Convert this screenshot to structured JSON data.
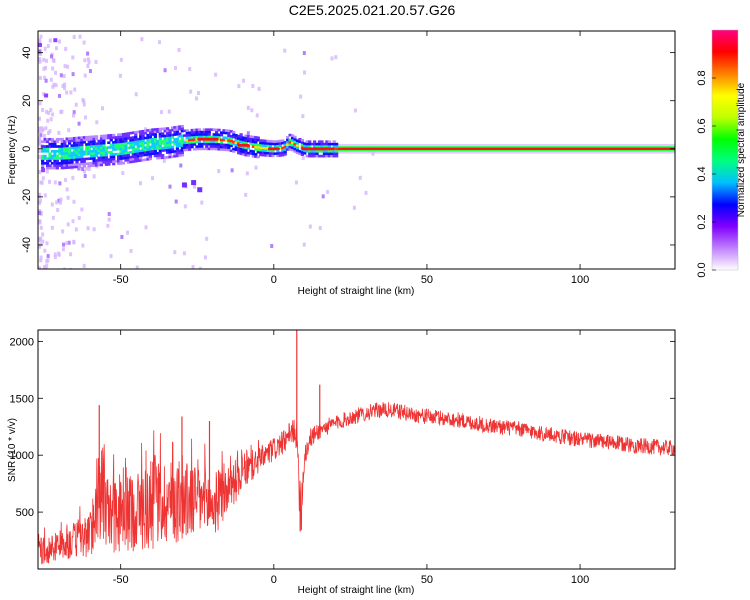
{
  "figure_title": "C2E5.2025.021.20.57.G26",
  "chart_data": [
    {
      "type": "heatmap",
      "title": "",
      "xlabel": "Height of straight line (km)",
      "ylabel": "Frequency (Hz)",
      "xlim": [
        -77,
        131
      ],
      "ylim": [
        -50,
        49
      ],
      "xticks": [
        -50,
        0,
        50,
        100
      ],
      "yticks": [
        -40,
        -20,
        0,
        20,
        40
      ],
      "xtick_labels": [
        "-50",
        "0",
        "50",
        "100"
      ],
      "ytick_labels": [
        "-40",
        "-20",
        "0",
        "20",
        "40"
      ],
      "colorbar": {
        "label": "Normalized spectral amplitude",
        "range": [
          0,
          1
        ],
        "ticks": [
          0.0,
          0.2,
          0.4,
          0.6,
          0.8
        ],
        "tick_labels": [
          "0.0",
          "0.2",
          "0.4",
          "0.6",
          "0.8"
        ],
        "colormap": [
          "#ffffff",
          "#c080ff",
          "#8000ff",
          "#0000ff",
          "#00c0ff",
          "#00ff80",
          "#00ff00",
          "#c0ff00",
          "#ffff00",
          "#ff8000",
          "#ff0000",
          "#ff0080"
        ]
      },
      "ridge": {
        "x": [
          -75,
          -70,
          -65,
          -60,
          -55,
          -50,
          -45,
          -40,
          -35,
          -30,
          -25,
          -20,
          -15,
          -10,
          -5,
          0,
          3,
          5,
          7,
          10,
          15,
          20,
          30,
          131
        ],
        "y": [
          -2,
          -2,
          -1.5,
          -1,
          -0.5,
          0,
          1,
          2,
          2.5,
          3.5,
          4,
          4,
          3.5,
          1.5,
          0.5,
          0,
          0.5,
          3,
          1.5,
          0,
          0,
          0,
          0,
          0
        ]
      }
    },
    {
      "type": "line",
      "title": "",
      "xlabel": "Height of straight line (km)",
      "ylabel": "SNR (10 * v/v)",
      "xlim": [
        -77,
        131
      ],
      "ylim": [
        0,
        2100
      ],
      "xticks": [
        -50,
        0,
        50,
        100
      ],
      "yticks": [
        500,
        1000,
        1500,
        2000
      ],
      "xtick_labels": [
        "-50",
        "0",
        "50",
        "100"
      ],
      "ytick_labels": [
        "500",
        "1000",
        "1500",
        "2000"
      ],
      "grid": false,
      "color": "#ee3333",
      "envelope": {
        "x": [
          -77,
          -70,
          -60,
          -58,
          -55,
          -50,
          -45,
          -40,
          -35,
          -30,
          -25,
          -20,
          -15,
          -10,
          -5,
          0,
          5,
          7,
          8,
          9,
          10,
          12,
          15,
          20,
          25,
          30,
          35,
          40,
          45,
          50,
          60,
          70,
          80,
          90,
          100,
          110,
          120,
          131
        ],
        "mean": [
          150,
          200,
          300,
          550,
          500,
          450,
          520,
          550,
          600,
          580,
          620,
          550,
          700,
          850,
          950,
          1050,
          1150,
          1250,
          900,
          550,
          1000,
          1150,
          1220,
          1280,
          1330,
          1370,
          1400,
          1390,
          1360,
          1340,
          1310,
          1260,
          1230,
          1180,
          1140,
          1110,
          1080,
          1060
        ],
        "spread": [
          120,
          130,
          200,
          350,
          350,
          320,
          360,
          400,
          380,
          360,
          350,
          300,
          220,
          160,
          120,
          110,
          100,
          120,
          300,
          250,
          130,
          90,
          80,
          70,
          70,
          70,
          70,
          70,
          70,
          70,
          70,
          70,
          70,
          70,
          70,
          70,
          70,
          70
        ]
      },
      "spikes": [
        {
          "x": -57,
          "y": 1440
        },
        {
          "x": -30,
          "y": 1340
        },
        {
          "x": -21,
          "y": 1300
        },
        {
          "x": 5,
          "y": 1280
        },
        {
          "x": 7.5,
          "y": 2100
        },
        {
          "x": 8.6,
          "y": 330
        },
        {
          "x": 15,
          "y": 1620
        }
      ]
    }
  ]
}
